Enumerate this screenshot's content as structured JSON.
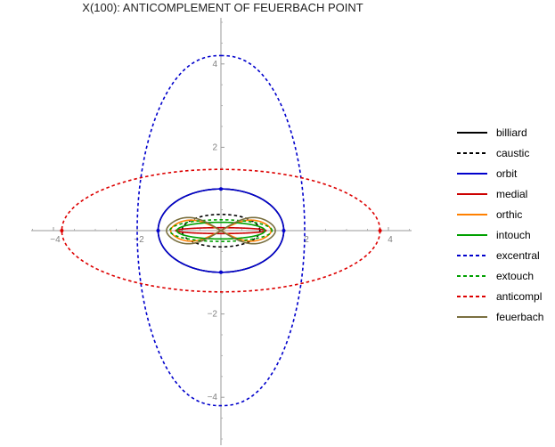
{
  "chart_data": {
    "type": "line",
    "title": "X(100): ANTICOMPLEMENT OF FEUERBACH POINT",
    "xlabel": "",
    "ylabel": "",
    "xlim": [
      -4.6,
      4.6
    ],
    "ylim": [
      -5.2,
      5.2
    ],
    "x_ticks": [
      -4,
      -2,
      2,
      4
    ],
    "x_tick_labels": [
      "-4",
      "-2",
      "2",
      "4"
    ],
    "y_ticks": [
      -4,
      -2,
      2,
      4
    ],
    "y_tick_labels": [
      "-4",
      "-2",
      "2",
      "4"
    ],
    "grid": false,
    "legend_position": "right",
    "series": [
      {
        "name": "billiard",
        "color": "#000000",
        "dash": "solid",
        "shape": "ellipse",
        "a": 1.5,
        "b": 1.0
      },
      {
        "name": "caustic",
        "color": "#000000",
        "dash": "dashed",
        "shape": "ellipse",
        "a": 0.93,
        "b": 0.39
      },
      {
        "name": "orbit",
        "color": "#0000cc",
        "dash": "solid",
        "shape": "ellipse",
        "a": 1.5,
        "b": 1.0
      },
      {
        "name": "medial",
        "color": "#cc0000",
        "dash": "solid",
        "shape": "ellipse",
        "a": 1.08,
        "b": 0.07
      },
      {
        "name": "orthic",
        "color": "#ff8000",
        "dash": "solid",
        "shape": "lemniscate",
        "a": 1.2,
        "b": 0.4
      },
      {
        "name": "intouch",
        "color": "#00a000",
        "dash": "solid",
        "shape": "ellipse",
        "a": 1.05,
        "b": 0.2
      },
      {
        "name": "excentral",
        "color": "#0000cc",
        "dash": "dashed",
        "shape": "lens",
        "a": 2.0,
        "b": 4.2
      },
      {
        "name": "extouch",
        "color": "#00a000",
        "dash": "dashed",
        "shape": "ellipse",
        "a": 1.22,
        "b": 0.26
      },
      {
        "name": "anticompl",
        "color": "#dd0000",
        "dash": "dashed",
        "shape": "ellipse",
        "a": 3.8,
        "b": 1.47
      },
      {
        "name": "feuerbach",
        "color": "#7a7040",
        "dash": "solid",
        "shape": "lemniscate",
        "a": 1.3,
        "b": 0.5
      }
    ]
  }
}
